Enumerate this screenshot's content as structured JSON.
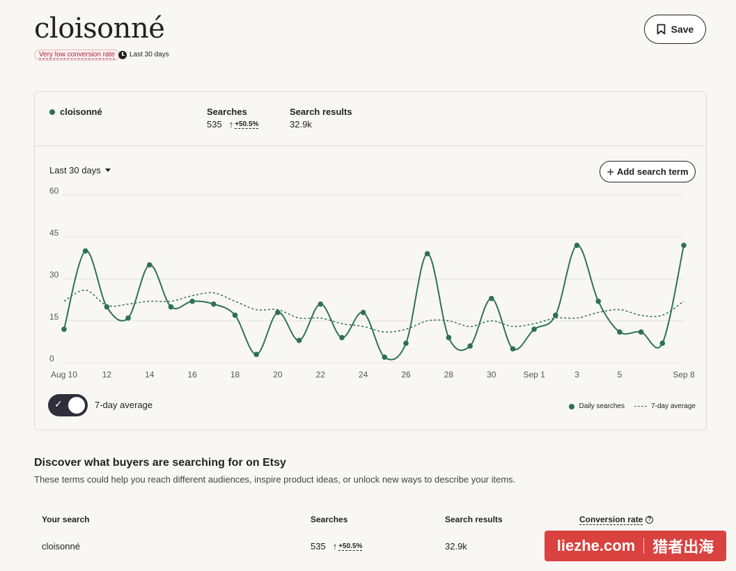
{
  "header": {
    "title": "cloisonné",
    "badge": "Very low conversion rate",
    "period": "Last 30 days",
    "save_label": "Save"
  },
  "card": {
    "term": "cloisonné",
    "searches_label": "Searches",
    "searches_value": "535",
    "searches_delta": "+50.5%",
    "results_label": "Search results",
    "results_value": "32.9k",
    "range_label": "Last 30 days",
    "add_label": "Add search term",
    "toggle_label": "7-day average",
    "legend_daily": "Daily searches",
    "legend_avg": "7-day average"
  },
  "chart_data": {
    "type": "line",
    "x": [
      "Aug 10",
      "Aug 11",
      "Aug 12",
      "Aug 13",
      "Aug 14",
      "Aug 15",
      "Aug 16",
      "Aug 17",
      "Aug 18",
      "Aug 19",
      "Aug 20",
      "Aug 21",
      "Aug 22",
      "Aug 23",
      "Aug 24",
      "Aug 25",
      "Aug 26",
      "Aug 27",
      "Aug 28",
      "Aug 29",
      "Aug 30",
      "Aug 31",
      "Sep 1",
      "Sep 2",
      "Sep 3",
      "Sep 4",
      "Sep 5",
      "Sep 6",
      "Sep 7",
      "Sep 8"
    ],
    "tick_labels": [
      "Aug 10",
      "12",
      "14",
      "16",
      "18",
      "20",
      "22",
      "24",
      "26",
      "28",
      "30",
      "Sep 1",
      "3",
      "5",
      "Sep 8"
    ],
    "tick_index": [
      0,
      2,
      4,
      6,
      8,
      10,
      12,
      14,
      16,
      18,
      20,
      22,
      24,
      26,
      29
    ],
    "ylim": [
      0,
      60
    ],
    "yticks": [
      0,
      15,
      30,
      45,
      60
    ],
    "series": [
      {
        "name": "Daily searches",
        "values": [
          12,
          40,
          20,
          16,
          35,
          20,
          22,
          21,
          17,
          3,
          18,
          8,
          21,
          9,
          18,
          2,
          7,
          39,
          9,
          6,
          23,
          5,
          12,
          17,
          42,
          22,
          11,
          11,
          7,
          42
        ]
      },
      {
        "name": "7-day average",
        "values": [
          22,
          26,
          20.5,
          21,
          22,
          22,
          24,
          25,
          22,
          19,
          19,
          16,
          16,
          14,
          13,
          11,
          12,
          15,
          15,
          13,
          15,
          13,
          14,
          16,
          16,
          18,
          19,
          17,
          17,
          22
        ]
      }
    ],
    "colors": {
      "line": "#2d7055",
      "grid": "#e3e3df",
      "axis_text": "#555555"
    }
  },
  "discover": {
    "title": "Discover what buyers are searching for on Etsy",
    "subtitle": "These terms could help you reach different audiences, inspire product ideas, or unlock new ways to describe your items.",
    "columns": [
      "Your search",
      "Searches",
      "Search results",
      "Conversion rate"
    ],
    "row": {
      "term": "cloisonné",
      "searches": "535",
      "delta": "+50.5%",
      "results": "32.9k"
    }
  },
  "watermark": {
    "left": "liezhe.com",
    "right": "猎者出海"
  }
}
